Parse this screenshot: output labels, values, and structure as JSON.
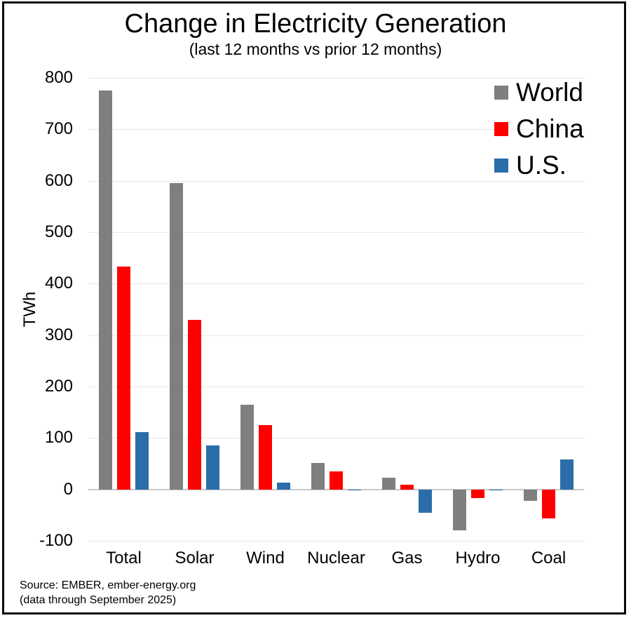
{
  "title": "Change in Electricity Generation",
  "subtitle": "(last 12 months vs prior 12 months)",
  "source": {
    "line1": "Source: EMBER, ember-energy.org",
    "line2": "(data through September 2025)"
  },
  "chart_data": {
    "type": "bar",
    "title": "Change in Electricity Generation",
    "subtitle": "(last 12 months vs prior 12 months)",
    "categories": [
      "Total",
      "Solar",
      "Wind",
      "Nuclear",
      "Gas",
      "Hydro",
      "Coal"
    ],
    "series": [
      {
        "name": "World",
        "color": "#7f7f7f",
        "values": [
          775,
          595,
          165,
          52,
          23,
          -80,
          -22
        ]
      },
      {
        "name": "China",
        "color": "#ff0000",
        "values": [
          433,
          330,
          125,
          35,
          9,
          -17,
          -56
        ]
      },
      {
        "name": "U.S.",
        "color": "#2b6da9",
        "values": [
          112,
          85,
          13,
          -2,
          -45,
          -1,
          58
        ]
      }
    ],
    "ylabel": "TWh",
    "ylim": [
      -100,
      800
    ],
    "yticks": [
      800,
      700,
      600,
      500,
      400,
      300,
      200,
      100,
      0,
      -100
    ],
    "grid": true,
    "legend_position": "top-right",
    "colors": {
      "gridline": "#e8e8e8",
      "zero_line": "#c8c8c8",
      "frame_border": "#0a0a0a"
    }
  }
}
